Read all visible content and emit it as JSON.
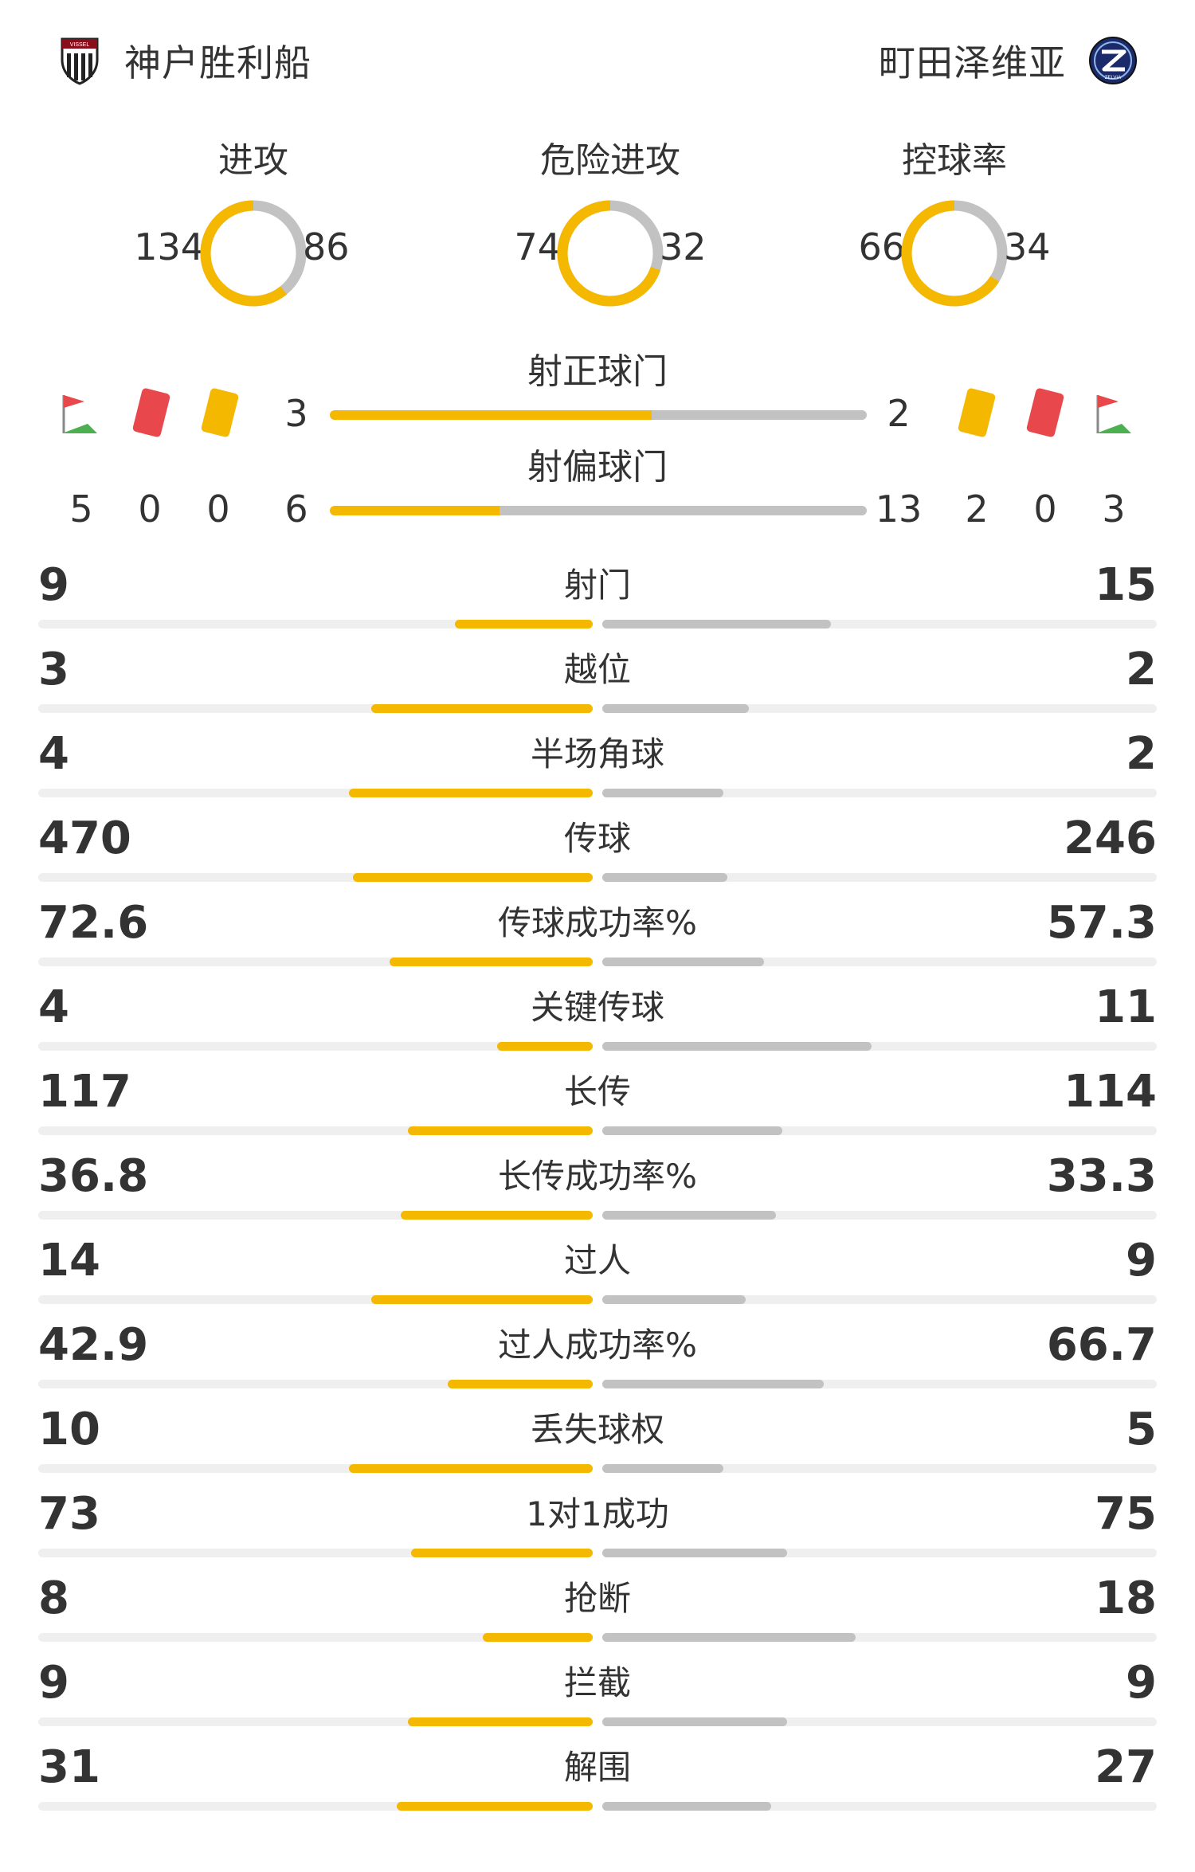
{
  "header": {
    "home_team": "神户胜利船",
    "away_team": "町田泽维亚",
    "home_crest_text": "VISSEL",
    "away_crest_text": "ZELVIA"
  },
  "colors": {
    "home": "#f5b800",
    "away": "#c2c2c2",
    "track": "#efefef",
    "text": "#333333"
  },
  "donuts": [
    {
      "title": "进攻",
      "home": "134",
      "away": "86",
      "home_share": 0.609
    },
    {
      "title": "危险进攻",
      "home": "74",
      "away": "32",
      "home_share": 0.698
    },
    {
      "title": "控球率",
      "home": "66",
      "away": "34",
      "home_share": 0.66
    }
  ],
  "shots_on": {
    "title": "射正球门",
    "home": "3",
    "away": "2",
    "home_share": 0.6
  },
  "shots_off": {
    "title": "射偏球门",
    "home": "6",
    "away": "13",
    "home_share": 0.316
  },
  "cards": {
    "home": {
      "corners": "5",
      "red": "0",
      "yellow": "0"
    },
    "away": {
      "yellow": "2",
      "red": "0",
      "corners": "3"
    },
    "icons": [
      "corner-flag-icon",
      "red-card-icon",
      "yellow-card-icon"
    ]
  },
  "stats": [
    {
      "label": "射门",
      "home": "9",
      "away": "15",
      "home_frac": 0.248,
      "away_frac": 0.412
    },
    {
      "label": "越位",
      "home": "3",
      "away": "2",
      "home_frac": 0.399,
      "away_frac": 0.265
    },
    {
      "label": "半场角球",
      "home": "4",
      "away": "2",
      "home_frac": 0.44,
      "away_frac": 0.219
    },
    {
      "label": "传球",
      "home": "470",
      "away": "246",
      "home_frac": 0.432,
      "away_frac": 0.225
    },
    {
      "label": "传球成功率%",
      "home": "72.6",
      "away": "57.3",
      "home_frac": 0.366,
      "away_frac": 0.292
    },
    {
      "label": "关键传球",
      "home": "4",
      "away": "11",
      "home_frac": 0.172,
      "away_frac": 0.485
    },
    {
      "label": "长传",
      "home": "117",
      "away": "114",
      "home_frac": 0.333,
      "away_frac": 0.325
    },
    {
      "label": "长传成功率%",
      "home": "36.8",
      "away": "33.3",
      "home_frac": 0.346,
      "away_frac": 0.313
    },
    {
      "label": "过人",
      "home": "14",
      "away": "9",
      "home_frac": 0.399,
      "away_frac": 0.259
    },
    {
      "label": "过人成功率%",
      "home": "42.9",
      "away": "66.7",
      "home_frac": 0.261,
      "away_frac": 0.399
    },
    {
      "label": "丢失球权",
      "home": "10",
      "away": "5",
      "home_frac": 0.44,
      "away_frac": 0.219
    },
    {
      "label": "1对1成功",
      "home": "73",
      "away": "75",
      "home_frac": 0.327,
      "away_frac": 0.333
    },
    {
      "label": "抢断",
      "home": "8",
      "away": "18",
      "home_frac": 0.198,
      "away_frac": 0.457
    },
    {
      "label": "拦截",
      "home": "9",
      "away": "9",
      "home_frac": 0.333,
      "away_frac": 0.333
    },
    {
      "label": "解围",
      "home": "31",
      "away": "27",
      "home_frac": 0.353,
      "away_frac": 0.305
    }
  ]
}
